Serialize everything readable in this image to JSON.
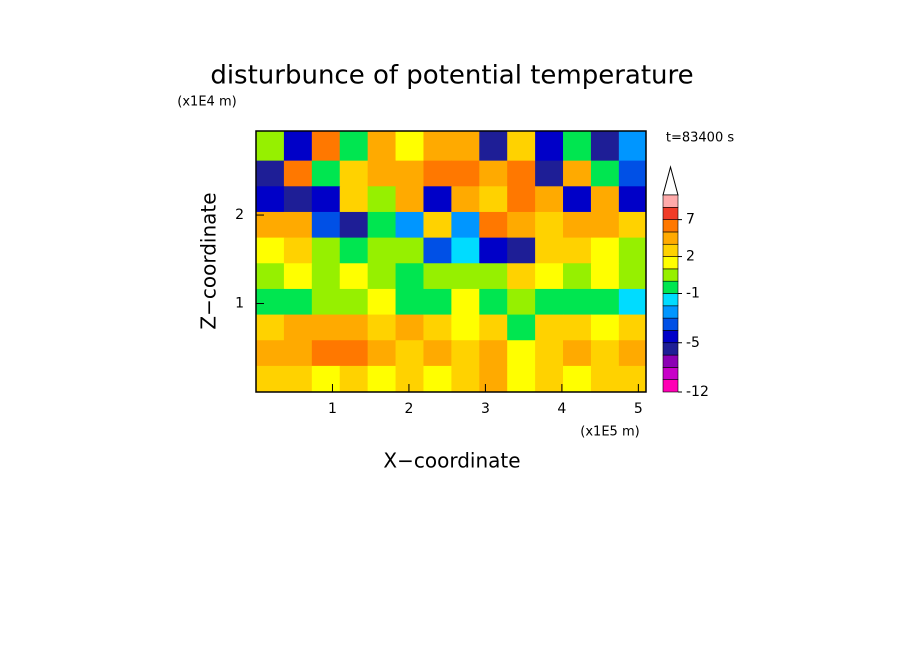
{
  "chart_data": {
    "type": "contour",
    "title": "disturbunce of potential temperature",
    "x_label": "X−coordinate",
    "y_label": "Z−coordinate",
    "x_unit": "(x1E5 m)",
    "y_unit": "(x1E4 m)",
    "time_label": "t=83400 s",
    "xlim": [
      0,
      5.1
    ],
    "ylim": [
      0,
      2.95
    ],
    "xticks": [
      1,
      2,
      3,
      4,
      5
    ],
    "yticks": [
      1,
      2
    ],
    "x": [
      0.18,
      0.55,
      0.91,
      1.28,
      1.64,
      2.01,
      2.37,
      2.74,
      3.1,
      3.47,
      3.83,
      4.2,
      4.56,
      4.93
    ],
    "y": [
      2.76,
      2.47,
      2.18,
      1.89,
      1.6,
      1.31,
      1.02,
      0.73,
      0.44,
      0.15
    ],
    "z": [
      [
        0,
        -5,
        5,
        -1,
        3,
        1,
        4,
        3,
        -6,
        2,
        -5,
        -1,
        -6,
        -3
      ],
      [
        -6,
        5,
        -1,
        2,
        4,
        3,
        5,
        6,
        3,
        5,
        -6,
        3,
        -1,
        -4
      ],
      [
        -5,
        -6,
        -5,
        2,
        0,
        3,
        -5,
        4,
        2,
        6,
        4,
        -5,
        3,
        -5
      ],
      [
        4,
        3,
        -4,
        -6,
        -1,
        -3,
        2,
        -3,
        5,
        4,
        2,
        4,
        3,
        2
      ],
      [
        1,
        2,
        0,
        -1,
        0,
        0,
        -4,
        -2,
        -5,
        -6,
        2,
        2,
        1,
        0
      ],
      [
        0,
        1,
        0,
        1,
        0,
        -1,
        0,
        0,
        0,
        2,
        1,
        0,
        1,
        0
      ],
      [
        -1,
        -1,
        0,
        0,
        1,
        -1,
        -1,
        1,
        -1,
        0,
        -1,
        -1,
        -1,
        -2
      ],
      [
        2,
        3,
        3,
        3,
        2,
        3,
        2,
        1,
        2,
        -1,
        2,
        2,
        1,
        2
      ],
      [
        3,
        4,
        5,
        5,
        3,
        2,
        3,
        2,
        3,
        1,
        2,
        3,
        2,
        3
      ],
      [
        2,
        2,
        1,
        2,
        1,
        2,
        1,
        2,
        3,
        1,
        2,
        1,
        2,
        2
      ]
    ],
    "levels": [
      -12,
      -10,
      -8,
      -6,
      -5,
      -4,
      -3,
      -2,
      -1,
      0,
      1,
      2,
      3,
      5,
      7,
      9,
      11
    ],
    "colors": [
      "#ff00b4",
      "#c800c8",
      "#8c00b4",
      "#1e1e96",
      "#0000c8",
      "#0050e6",
      "#0096ff",
      "#00dcff",
      "#00e650",
      "#96f000",
      "#ffff00",
      "#ffd200",
      "#ffaa00",
      "#ff7800",
      "#f03c28",
      "#ffaaaa"
    ],
    "colorbar_ticks": [
      -12,
      -5,
      -1,
      2,
      7
    ]
  }
}
